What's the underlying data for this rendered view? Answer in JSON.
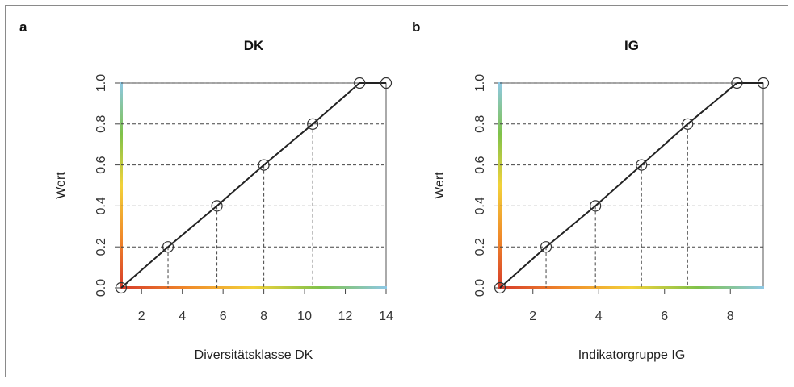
{
  "figure": {
    "panels": [
      {
        "letter": "a",
        "title": "DK",
        "xlabel": "Diversitätsklasse DK",
        "ylabel": "Wert"
      },
      {
        "letter": "b",
        "title": "IG",
        "xlabel": "Indikatorgruppe IG",
        "ylabel": "Wert"
      }
    ]
  },
  "colors": {
    "line": "#222222",
    "grid": "#444444",
    "axis": "#444444",
    "gradient": [
      "#d63a2a",
      "#f08a2a",
      "#f2d23a",
      "#7fc24a",
      "#8ec8e6"
    ]
  },
  "chart_data": [
    {
      "type": "line",
      "title": "DK",
      "xlabel": "Diversitätsklasse DK",
      "ylabel": "Wert",
      "xlim": [
        1,
        14
      ],
      "ylim": [
        0,
        1
      ],
      "xticks": [
        2,
        4,
        6,
        8,
        10,
        12,
        14
      ],
      "yticks": [
        0.0,
        0.2,
        0.4,
        0.6,
        0.8,
        1.0
      ],
      "grid": "dashed at data points",
      "series": [
        {
          "x": [
            1.0,
            3.3,
            5.7,
            8.0,
            10.4,
            12.7,
            14.0
          ],
          "y": [
            0.0,
            0.2,
            0.4,
            0.6,
            0.8,
            1.0,
            1.0
          ]
        }
      ]
    },
    {
      "type": "line",
      "title": "IG",
      "xlabel": "Indikatorgruppe IG",
      "ylabel": "Wert",
      "xlim": [
        1,
        9
      ],
      "ylim": [
        0,
        1
      ],
      "xticks": [
        2,
        4,
        6,
        8
      ],
      "yticks": [
        0.0,
        0.2,
        0.4,
        0.6,
        0.8,
        1.0
      ],
      "grid": "dashed at data points",
      "series": [
        {
          "x": [
            1.0,
            2.4,
            3.9,
            5.3,
            6.7,
            8.2,
            9.0
          ],
          "y": [
            0.0,
            0.2,
            0.4,
            0.6,
            0.8,
            1.0,
            1.0
          ]
        }
      ]
    }
  ]
}
